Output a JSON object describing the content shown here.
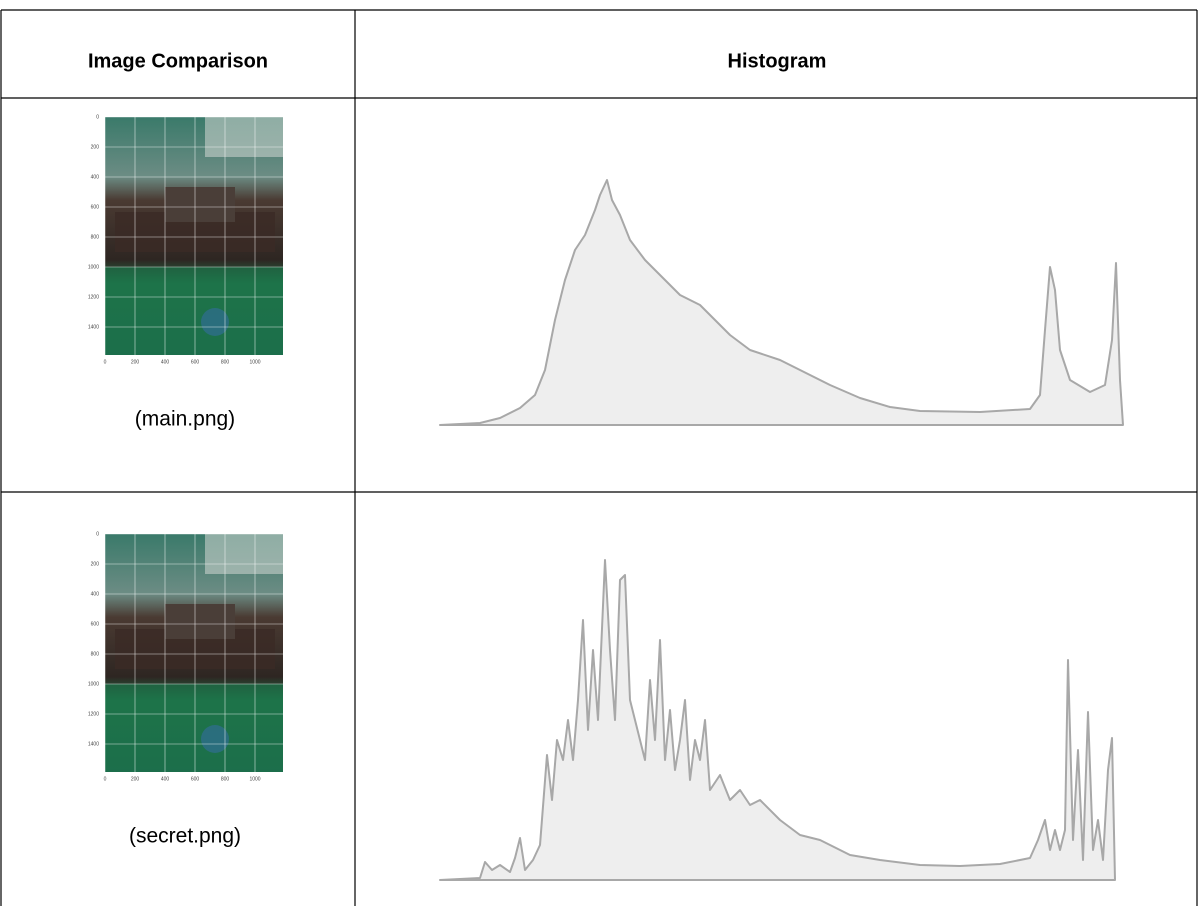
{
  "table": {
    "header": [
      "Image Comparison",
      "Histogram"
    ],
    "rows": [
      {
        "image": {
          "yticks": [
            0,
            200,
            400,
            600,
            800,
            1000,
            1200,
            1400
          ],
          "xticks": [
            0,
            200,
            400,
            600,
            800,
            1000
          ]
        },
        "caption": "(main.png)"
      },
      {
        "image": {
          "yticks": [
            0,
            200,
            400,
            600,
            800,
            1000,
            1200,
            1400
          ],
          "xticks": [
            0,
            200,
            400,
            600,
            800,
            1000
          ]
        },
        "caption": "(secret.png)"
      }
    ]
  }
}
